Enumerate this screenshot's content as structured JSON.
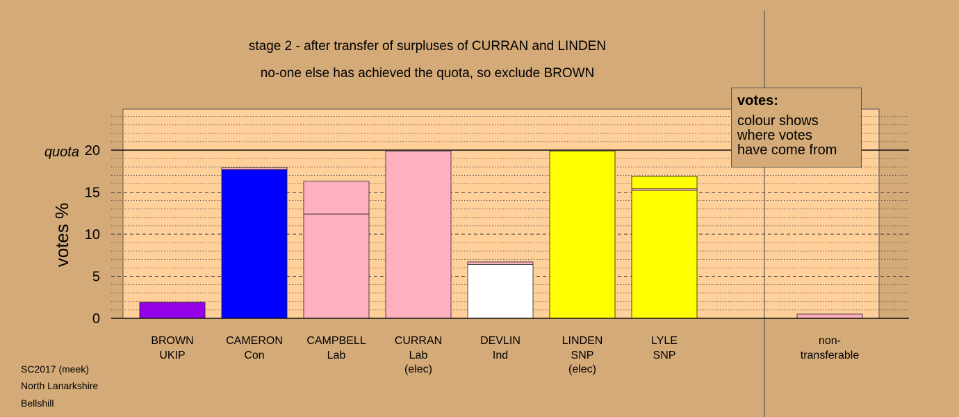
{
  "chart_data": {
    "type": "bar",
    "stacked": true,
    "title": "stage 2 - after transfer of surpluses of CURRAN and LINDEN",
    "subtitle": "no-one else has achieved the quota, so exclude BROWN",
    "ylabel": "votes %",
    "ylim": [
      0,
      25
    ],
    "yticks": [
      0,
      5,
      10,
      15,
      20
    ],
    "quota": {
      "label": "quota",
      "value": 20
    },
    "grid": true,
    "candidates": [
      {
        "name": "BROWN",
        "party": "UKIP",
        "note": "",
        "segments": [
          {
            "value": 1.9,
            "color": "#9400e8"
          }
        ]
      },
      {
        "name": "CAMERON",
        "party": "Con",
        "note": "",
        "segments": [
          {
            "value": 17.7,
            "color": "#0000ff"
          },
          {
            "value": 0.2,
            "color": "#ffb0c0"
          }
        ]
      },
      {
        "name": "CAMPBELL",
        "party": "Lab",
        "note": "",
        "segments": [
          {
            "value": 12.4,
            "color": "#ffb0c0"
          },
          {
            "value": 3.9,
            "color": "#ffb0c0"
          }
        ]
      },
      {
        "name": "CURRAN",
        "party": "Lab",
        "note": "(elec)",
        "segments": [
          {
            "value": 19.9,
            "color": "#ffb0c0"
          }
        ]
      },
      {
        "name": "DEVLIN",
        "party": "Ind",
        "note": "",
        "segments": [
          {
            "value": 6.4,
            "color": "#ffffff"
          },
          {
            "value": 0.3,
            "color": "#ffb0c0"
          }
        ]
      },
      {
        "name": "LINDEN",
        "party": "SNP",
        "note": "(elec)",
        "segments": [
          {
            "value": 19.9,
            "color": "#ffff00"
          }
        ]
      },
      {
        "name": "LYLE",
        "party": "SNP",
        "note": "",
        "segments": [
          {
            "value": 15.2,
            "color": "#ffff00"
          },
          {
            "value": 0.2,
            "color": "#ffb0c0"
          },
          {
            "value": 1.5,
            "color": "#ffff00"
          }
        ]
      }
    ],
    "non_transferable": {
      "label1": "non-",
      "label2": "transferable",
      "segments": [
        {
          "value": 0.5,
          "color": "#ffb0c0"
        }
      ]
    },
    "legend": {
      "title": "votes:",
      "text": "colour shows\nwhere votes\nhave come from",
      "placement": "top-right"
    },
    "colors": {
      "background": "#d4aa78",
      "plot_area": "#ffd09a"
    }
  },
  "footer": {
    "line1": "SC2017 (meek)",
    "line2": "North Lanarkshire",
    "line3": "Bellshill"
  }
}
